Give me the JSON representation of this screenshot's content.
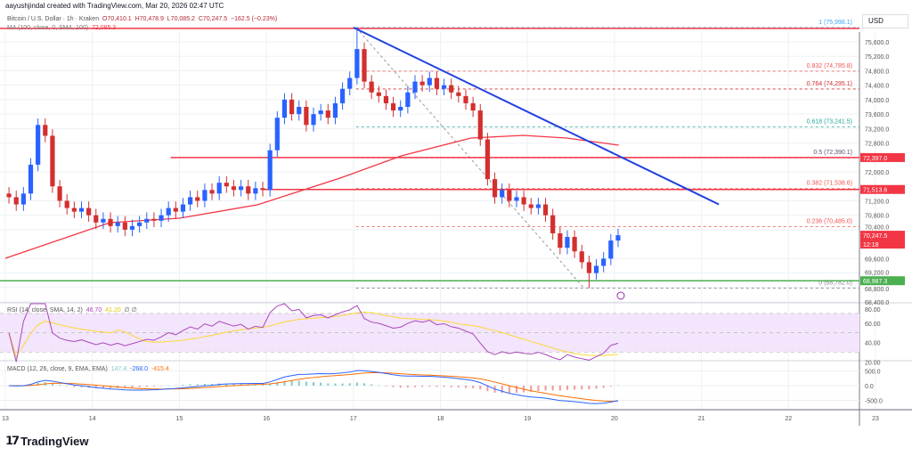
{
  "credit": "aayushjindal created with TradingView.com, Mar 20, 2026 02:47 UTC",
  "legend": {
    "symbol": "Bitcoin / U.S. Dollar · 1h · Kraken",
    "o": "O70,410.1",
    "h": "H70,478.9",
    "l": "L70,085.2",
    "c": "C70,247.5",
    "chg": "−162.5 (−0.23%)"
  },
  "ma_legend": {
    "label": "MA (100, close, 0, SMA, 100)",
    "value": "72,085.3"
  },
  "rsi_legend": {
    "label": "RSI (14, close, SMA, 14, 2)",
    "rsi": "46.70",
    "sma": "41.20",
    "extra": "∅ ∅"
  },
  "macd_legend": {
    "label": "MACD (12, 26, close, 9, EMA, EMA)",
    "hist": "147.4",
    "macd": "-268.0",
    "signal": "-415.4"
  },
  "currency": "USD",
  "logo": "TradingView",
  "colors": {
    "up": "#2962ff",
    "down": "#d32f2f",
    "ma": "#f23645",
    "trendline": "#1f3fe0",
    "resistance": "#f23645",
    "support": "#4caf50",
    "rsi": "#ab47bc",
    "rsi_sma": "#fdd835",
    "macd": "#2962ff",
    "signal": "#ff6d00"
  },
  "chart_data": {
    "type": "candlestick",
    "price_axis": {
      "ticks": [
        "75,600.0",
        "75,200.0",
        "74,800.0",
        "74,400.0",
        "74,000.0",
        "73,600.0",
        "73,200.0",
        "72,800.0",
        "72,000.0",
        "71,200.0",
        "70,800.0",
        "70,400.0",
        "69,600.0",
        "69,200.0",
        "68,800.0",
        "68,400.0"
      ],
      "range": [
        68300,
        76200
      ]
    },
    "time_axis": {
      "ticks": [
        "13",
        "14",
        "15",
        "16",
        "17",
        "18",
        "19",
        "20",
        "21",
        "22",
        "23"
      ]
    },
    "candle_interval_hours": 2,
    "closes": [
      71300,
      71100,
      71400,
      72200,
      73300,
      73000,
      71600,
      71200,
      71000,
      70900,
      71000,
      70800,
      70600,
      70700,
      70500,
      70600,
      70400,
      70500,
      70600,
      70700,
      70650,
      70800,
      71000,
      70900,
      71100,
      71300,
      71200,
      71500,
      71400,
      71700,
      71600,
      71500,
      71600,
      71400,
      71550,
      71500,
      72600,
      73500,
      74000,
      73600,
      73800,
      73300,
      73600,
      73700,
      73500,
      73900,
      74300,
      74600,
      75400,
      74500,
      74200,
      74100,
      73900,
      73700,
      73800,
      74200,
      74500,
      74400,
      74600,
      74300,
      74400,
      74200,
      74100,
      73900,
      73700,
      72900,
      71800,
      71300,
      71500,
      71200,
      71300,
      71100,
      71000,
      71100,
      70800,
      70300,
      69900,
      70200,
      69800,
      69500,
      69200,
      69400,
      69600,
      70100,
      70247.5
    ],
    "ma100": [
      [
        13,
        69609
      ],
      [
        14.2,
        70595
      ],
      [
        15,
        70719
      ],
      [
        15.9,
        71090
      ],
      [
        16.85,
        71830
      ],
      [
        17.55,
        72444
      ],
      [
        18.35,
        72937
      ],
      [
        18.95,
        73011
      ],
      [
        19.45,
        72937
      ],
      [
        20.05,
        72740
      ]
    ],
    "fib_levels": [
      {
        "label": "1 (75,998.1)",
        "price": 75998.1,
        "color": "#42a5f5"
      },
      {
        "label": "0.832 (74,785.8)",
        "price": 74785.8,
        "color": "#ef5350"
      },
      {
        "label": "0.764 (74,295.1)",
        "price": 74295.1,
        "color": "#d32f2f"
      },
      {
        "label": "0.618 (73,241.5)",
        "price": 73241.5,
        "color": "#26a69a"
      },
      {
        "label": "0.5 (72,390.1)",
        "price": 72390.1,
        "color": "#5d4e75"
      },
      {
        "label": "0.382 (71,538.6)",
        "price": 71538.6,
        "color": "#ef5350"
      },
      {
        "label": "0.236 (70,485.0)",
        "price": 70485.0,
        "color": "#ef5350"
      },
      {
        "label": "0 (68,782.0)",
        "price": 68782.0,
        "color": "#888888"
      }
    ],
    "price_tags": [
      {
        "label": "72,397.0",
        "price": 72397.0,
        "color": "#f23645"
      },
      {
        "label": "71,513.6",
        "price": 71513.6,
        "color": "#f23645"
      },
      {
        "label": "70,247.5",
        "sub": "12:18",
        "price": 70247.5,
        "color": "#f23645"
      },
      {
        "label": "68,987.3",
        "price": 68987.3,
        "color": "#4caf50"
      }
    ],
    "trendline": {
      "from": [
        17,
        75998.1
      ],
      "to": [
        21.2,
        71100
      ]
    },
    "rsi_axis": [
      "80.00",
      "60.00",
      "40.00",
      "20.00"
    ],
    "macd_axis": [
      "500.0",
      "0.0",
      "-500.0"
    ]
  }
}
